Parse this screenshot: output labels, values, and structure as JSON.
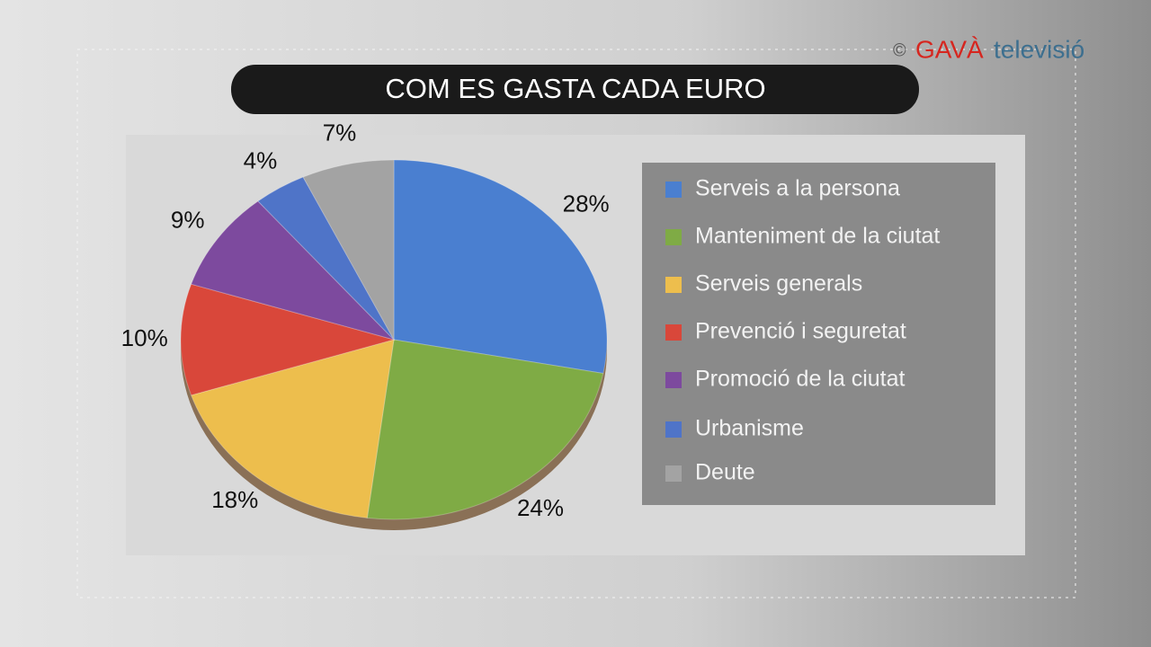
{
  "chart_data": {
    "type": "pie",
    "title": "COM ES GASTA CADA EURO",
    "categories": [
      "Serveis a la persona",
      "Manteniment de la ciutat",
      "Serveis generals",
      "Prevenció i seguretat",
      "Promoció de la ciutat",
      "Urbanisme",
      "Deute"
    ],
    "values": [
      28,
      24,
      18,
      10,
      9,
      4,
      7
    ],
    "value_labels": [
      "28%",
      "24%",
      "18%",
      "10%",
      "9%",
      "4%",
      "7%"
    ],
    "colors": [
      "#4a7fd0",
      "#7fab45",
      "#edbe4d",
      "#d9473a",
      "#7d4a9e",
      "#4f74c8",
      "#a3a3a3"
    ]
  },
  "watermark": {
    "symbol": "©",
    "brand": "GAVÀ",
    "suffix": "televisió"
  }
}
